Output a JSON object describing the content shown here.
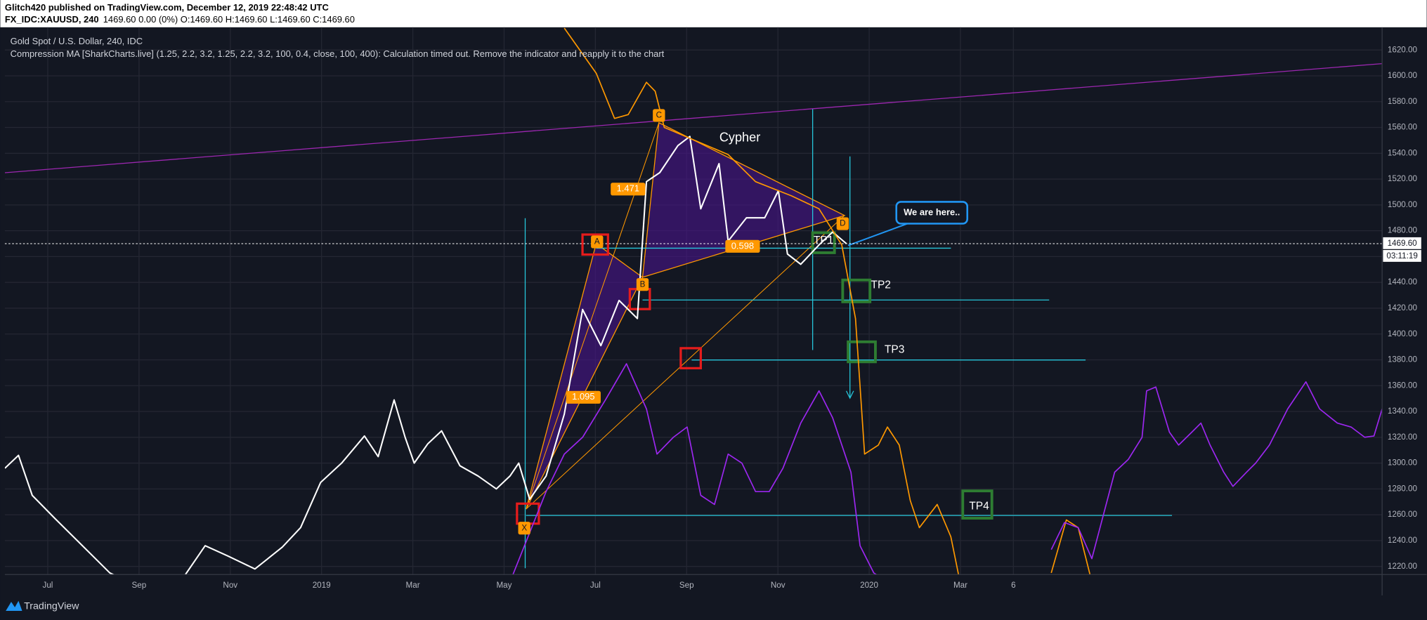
{
  "header": {
    "publisher": "Glitch420 published on TradingView.com, December 12, 2019 22:48:42 UTC",
    "ticker": "FX_IDC:XAUUSD, 240",
    "quote": "1469.60 0.00 (0%) O:1469.60 H:1469.60 L:1469.60 C:1469.60"
  },
  "chart_data": {
    "type": "line",
    "title": "Gold Spot / U.S. Dollar, 240, IDC",
    "subtitle": "Compression MA [SharkCharts.live] (1.25, 2.2, 3.2, 1.25, 2.2, 3.2, 100, 0.4, close, 100, 400): Calculation timed out. Remove the indicator and reapply it to the chart",
    "xlim": [
      -0.94,
      29.24
    ],
    "xticks": [
      {
        "value": 0,
        "label": "Jul"
      },
      {
        "value": 2,
        "label": "Sep"
      },
      {
        "value": 4,
        "label": "Nov"
      },
      {
        "value": 6,
        "label": "2019"
      },
      {
        "value": 8,
        "label": "Mar"
      },
      {
        "value": 10,
        "label": "May"
      },
      {
        "value": 12,
        "label": "Jul"
      },
      {
        "value": 14,
        "label": "Sep"
      },
      {
        "value": 16,
        "label": "Nov"
      },
      {
        "value": 18,
        "label": "2020"
      },
      {
        "value": 20,
        "label": "Mar"
      },
      {
        "value": 21.16,
        "label": "6"
      }
    ],
    "ylim": [
      1213.7,
      1637.6
    ],
    "yticks": [
      {
        "value": 1220,
        "label": "1220.00"
      },
      {
        "value": 1240,
        "label": "1240.00"
      },
      {
        "value": 1260,
        "label": "1260.00"
      },
      {
        "value": 1280,
        "label": "1280.00"
      },
      {
        "value": 1300,
        "label": "1300.00"
      },
      {
        "value": 1320,
        "label": "1320.00"
      },
      {
        "value": 1340,
        "label": "1340.00"
      },
      {
        "value": 1360,
        "label": "1360.00"
      },
      {
        "value": 1380,
        "label": "1380.00"
      },
      {
        "value": 1400,
        "label": "1400.00"
      },
      {
        "value": 1420,
        "label": "1420.00"
      },
      {
        "value": 1440,
        "label": "1440.00"
      },
      {
        "value": 1460,
        "label": "1460.00"
      },
      {
        "value": 1480,
        "label": "1480.00"
      },
      {
        "value": 1500,
        "label": "1500.00"
      },
      {
        "value": 1520,
        "label": "1520.00"
      },
      {
        "value": 1540,
        "label": "1540.00"
      },
      {
        "value": 1560,
        "label": "1560.00"
      },
      {
        "value": 1580,
        "label": "1580.00"
      },
      {
        "value": 1600,
        "label": "1600.00"
      },
      {
        "value": 1620,
        "label": "1620.00"
      }
    ],
    "grid": true,
    "series": [
      {
        "color": "#ffffff",
        "x": [
          -0.94,
          -0.64,
          -0.34,
          0.16,
          0.76,
          1.36,
          1.95,
          2.75,
          3.45,
          3.95,
          4.54,
          5.14,
          5.54,
          5.98,
          6.44,
          6.94,
          7.24,
          7.59,
          7.83,
          8.03,
          8.33,
          8.63,
          9.03,
          9.43,
          9.83,
          10.13,
          10.32,
          10.56,
          10.92,
          11.32,
          11.72,
          12.12,
          12.52,
          12.92,
          13.12,
          13.41,
          13.81,
          14.07,
          14.31,
          14.71,
          14.91,
          15.31,
          15.71,
          16.01,
          16.21,
          16.5,
          16.9,
          17.2,
          17.5
        ],
        "values": [
          1296,
          1306,
          1275,
          1257,
          1236,
          1215,
          1205,
          1200,
          1236,
          1228,
          1218,
          1235,
          1250,
          1285,
          1300,
          1321,
          1305,
          1349,
          1320,
          1300,
          1315,
          1325,
          1298,
          1290,
          1280,
          1290,
          1300,
          1272,
          1290,
          1338,
          1419,
          1391,
          1426,
          1412,
          1518,
          1525,
          1546,
          1553,
          1497,
          1532,
          1472,
          1490,
          1490,
          1511,
          1462,
          1454,
          1469,
          1479,
          1470
        ]
      },
      {
        "color": "#ff9800",
        "x": [
          11.32,
          12.02,
          12.42,
          12.72,
          13.12,
          13.31,
          13.51,
          14.91,
          15.51,
          16.3,
          16.9,
          17.4,
          17.7,
          17.9,
          18.2,
          18.4,
          18.66,
          18.9,
          19.1,
          19.49,
          19.79,
          19.99,
          21,
          21.99,
          22.32,
          22.58,
          22.88
        ],
        "values": [
          1637,
          1602,
          1567,
          1570,
          1595,
          1588,
          1560,
          1539,
          1518,
          1507,
          1497,
          1469,
          1412,
          1307,
          1314,
          1328,
          1314,
          1271,
          1250,
          1268,
          1243,
          1208,
          null,
          1215,
          1256,
          1250,
          1208
        ]
      },
      {
        "color": "#9c27f0",
        "x": [
          10.13,
          10.92,
          11.32,
          11.72,
          12.22,
          12.68,
          13.12,
          13.35,
          13.71,
          14.01,
          14.31,
          14.61,
          14.91,
          15.21,
          15.51,
          15.81,
          16.11,
          16.5,
          16.9,
          17.2,
          17.6,
          17.8,
          18.1,
          18.4,
          20,
          21.99,
          22.28,
          22.58,
          22.88,
          23.38,
          23.68,
          23.98,
          24.08,
          24.28,
          24.58,
          24.78,
          25.07,
          25.27,
          25.47,
          25.77,
          25.97,
          26.27,
          26.47,
          26.77,
          27.17,
          27.57,
          27.87,
          28.26,
          28.56,
          28.86,
          29.06,
          29.24
        ],
        "values": [
          1208,
          1278,
          1307,
          1320,
          1349,
          1377,
          1342,
          1307,
          1320,
          1328,
          1275,
          1268,
          1307,
          1300,
          1278,
          1278,
          1296,
          1331,
          1356,
          1335,
          1293,
          1236,
          1215,
          1208,
          null,
          1233,
          1254,
          1250,
          1226,
          1293,
          1303,
          1320,
          1356,
          1359,
          1324,
          1314,
          1324,
          1331,
          1314,
          1293,
          1282,
          1293,
          1300,
          1314,
          1342,
          1363,
          1342,
          1331,
          1328,
          1320,
          1321,
          1342
        ]
      }
    ],
    "annotations": [
      "Cypher",
      "We are here..",
      "TP1",
      "TP2",
      "TP3",
      "TP4",
      "X",
      "A",
      "B",
      "C",
      "D",
      "1.471",
      "0.598",
      "1.095"
    ],
    "price_label": "1469.60",
    "countdown": "03:11:19"
  },
  "footer": {
    "brand": "TradingView"
  }
}
